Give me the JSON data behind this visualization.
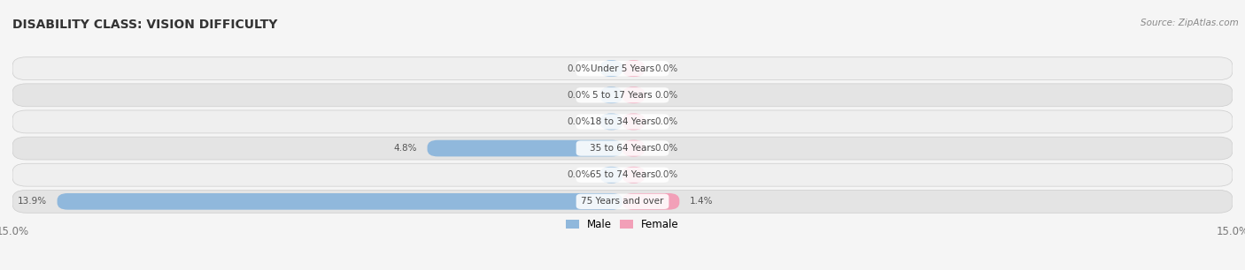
{
  "title": "DISABILITY CLASS: VISION DIFFICULTY",
  "source": "Source: ZipAtlas.com",
  "categories": [
    "Under 5 Years",
    "5 to 17 Years",
    "18 to 34 Years",
    "35 to 64 Years",
    "65 to 74 Years",
    "75 Years and over"
  ],
  "male_values": [
    0.0,
    0.0,
    0.0,
    4.8,
    0.0,
    13.9
  ],
  "female_values": [
    0.0,
    0.0,
    0.0,
    0.0,
    0.0,
    1.4
  ],
  "male_color": "#90b8dc",
  "female_color": "#f2a0b8",
  "row_light": "#efefef",
  "row_dark": "#e4e4e4",
  "bar_bg_light": "#dcdcdc",
  "bar_bg_dark": "#d2d2d2",
  "max_val": 15.0,
  "title_fontsize": 10,
  "source_fontsize": 7.5,
  "axis_fontsize": 8.5,
  "label_fontsize": 7.5,
  "category_fontsize": 7.5,
  "legend_fontsize": 8.5
}
